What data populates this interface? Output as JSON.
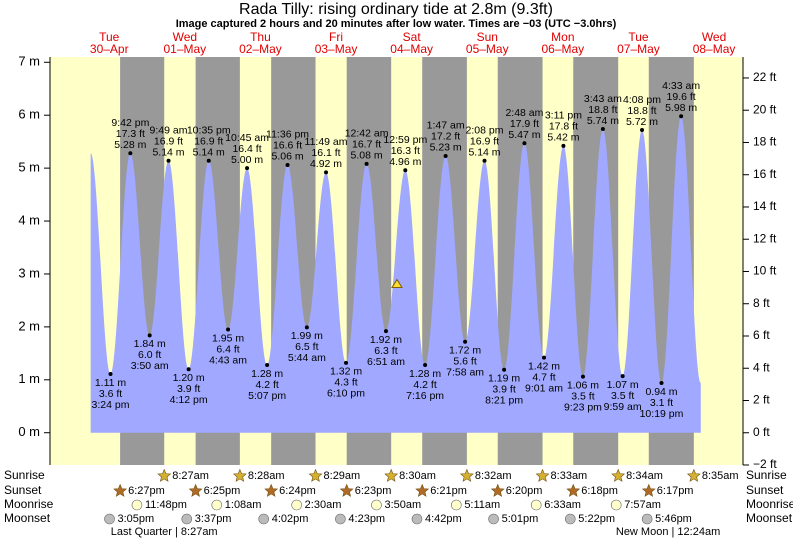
{
  "chart_data": {
    "type": "tide",
    "title": "Rada Tilly: rising  ordinary tide at 2.8m (9.3ft)",
    "subtitle": "Image captured 2 hours and 20 minutes after low water. Times are −03 (UTC −3.0hrs)",
    "ylim": [
      -0.61,
      7.1
    ],
    "yticks": [
      {
        "value": 0,
        "label": "0 m"
      },
      {
        "value": 1,
        "label": "1 m"
      },
      {
        "value": 2,
        "label": "2 m"
      },
      {
        "value": 3,
        "label": "3 m"
      },
      {
        "value": 4,
        "label": "4 m"
      },
      {
        "value": 5,
        "label": "5 m"
      },
      {
        "value": 6,
        "label": "6 m"
      },
      {
        "value": 7,
        "label": "7 m"
      }
    ],
    "y2lim": [
      -2,
      23.3
    ],
    "y2ticks": [
      {
        "value": -2,
        "label": "−2 ft"
      },
      {
        "value": 0,
        "label": "0 ft"
      },
      {
        "value": 2,
        "label": "2 ft"
      },
      {
        "value": 4,
        "label": "4 ft"
      },
      {
        "value": 6,
        "label": "6 ft"
      },
      {
        "value": 8,
        "label": "8 ft"
      },
      {
        "value": 10,
        "label": "10 ft"
      },
      {
        "value": 12,
        "label": "12 ft"
      },
      {
        "value": 14,
        "label": "14 ft"
      },
      {
        "value": 16,
        "label": "16 ft"
      },
      {
        "value": 18,
        "label": "18 ft"
      },
      {
        "value": 20,
        "label": "20 ft"
      },
      {
        "value": 22,
        "label": "22 ft"
      }
    ],
    "current": 2.8,
    "colors": {
      "day": "#ffffc8",
      "night": "#999999",
      "water": "#a0a8ff",
      "header": "#e00000",
      "sunrise": "#d4b030",
      "sunset": "#b06a28",
      "moonrise": "#ffffcc",
      "moonset": "#bbbbbb"
    },
    "row_labels": {
      "sunrise": "Sunrise",
      "sunset": "Sunset",
      "moonrise": "Moonrise",
      "moonset": "Moonset"
    },
    "days": [
      {
        "weekday": "Tue",
        "date": "30–Apr",
        "sunset": "6:27pm",
        "moonrise": "11:48pm",
        "moonset": "3:05pm",
        "tides": [
          {
            "time": "3:24 pm",
            "m": 1.11,
            "m_label": "1.11 m",
            "ft": 3.6,
            "ft_label": "3.6 ft"
          },
          {
            "time": "9:42 pm",
            "m": 5.28,
            "m_label": "5.28 m",
            "ft": 17.3,
            "ft_label": "17.3 ft"
          }
        ]
      },
      {
        "weekday": "Wed",
        "date": "01–May",
        "sunrise": "8:27am",
        "sunset": "6:25pm",
        "moonset": "3:37pm",
        "moon_phase": "Last Quarter | 8:27am",
        "tides": [
          {
            "time": "3:50 am",
            "m": 1.84,
            "m_label": "1.84 m",
            "ft": 6.0,
            "ft_label": "6.0 ft"
          },
          {
            "time": "9:49 am",
            "m": 5.14,
            "m_label": "5.14 m",
            "ft": 16.9,
            "ft_label": "16.9 ft"
          },
          {
            "time": "4:12 pm",
            "m": 1.2,
            "m_label": "1.20 m",
            "ft": 3.9,
            "ft_label": "3.9 ft"
          },
          {
            "time": "10:35 pm",
            "m": 5.14,
            "m_label": "5.14 m",
            "ft": 16.9,
            "ft_label": "16.9 ft"
          }
        ]
      },
      {
        "weekday": "Thu",
        "date": "02–May",
        "sunrise": "8:28am",
        "sunset": "6:24pm",
        "moonrise": "1:08am",
        "moonset": "4:02pm",
        "tides": [
          {
            "time": "4:43 am",
            "m": 1.95,
            "m_label": "1.95 m",
            "ft": 6.4,
            "ft_label": "6.4 ft"
          },
          {
            "time": "10:45 am",
            "m": 5.0,
            "m_label": "5.00 m",
            "ft": 16.4,
            "ft_label": "16.4 ft"
          },
          {
            "time": "5:07 pm",
            "m": 1.28,
            "m_label": "1.28 m",
            "ft": 4.2,
            "ft_label": "4.2 ft"
          },
          {
            "time": "11:36 pm",
            "m": 5.06,
            "m_label": "5.06 m",
            "ft": 16.6,
            "ft_label": "16.6 ft"
          }
        ]
      },
      {
        "weekday": "Fri",
        "date": "03–May",
        "sunrise": "8:29am",
        "sunset": "6:23pm",
        "moonrise": "2:30am",
        "moonset": "4:23pm",
        "tides": [
          {
            "time": "5:44 am",
            "m": 1.99,
            "m_label": "1.99 m",
            "ft": 6.5,
            "ft_label": "6.5 ft"
          },
          {
            "time": "11:49 am",
            "m": 4.92,
            "m_label": "4.92 m",
            "ft": 16.1,
            "ft_label": "16.1 ft"
          },
          {
            "time": "6:10 pm",
            "m": 1.32,
            "m_label": "1.32 m",
            "ft": 4.3,
            "ft_label": "4.3 ft"
          }
        ]
      },
      {
        "weekday": "Sat",
        "date": "04–May",
        "sunrise": "8:30am",
        "sunset": "6:21pm",
        "moonrise": "3:50am",
        "moonset": "4:42pm",
        "tides": [
          {
            "time": "12:42 am",
            "m": 5.08,
            "m_label": "5.08 m",
            "ft": 16.7,
            "ft_label": "16.7 ft"
          },
          {
            "time": "6:51 am",
            "m": 1.92,
            "m_label": "1.92 m",
            "ft": 6.3,
            "ft_label": "6.3 ft"
          },
          {
            "time": "12:59 pm",
            "m": 4.96,
            "m_label": "4.96 m",
            "ft": 16.3,
            "ft_label": "16.3 ft"
          },
          {
            "time": "7:16 pm",
            "m": 1.28,
            "m_label": "1.28 m",
            "ft": 4.2,
            "ft_label": "4.2 ft"
          }
        ]
      },
      {
        "weekday": "Sun",
        "date": "05–May",
        "sunrise": "8:32am",
        "sunset": "6:20pm",
        "moonrise": "5:11am",
        "moonset": "5:01pm",
        "tides": [
          {
            "time": "1:47 am",
            "m": 5.23,
            "m_label": "5.23 m",
            "ft": 17.2,
            "ft_label": "17.2 ft"
          },
          {
            "time": "7:58 am",
            "m": 1.72,
            "m_label": "1.72 m",
            "ft": 5.6,
            "ft_label": "5.6 ft"
          },
          {
            "time": "2:08 pm",
            "m": 5.14,
            "m_label": "5.14 m",
            "ft": 16.9,
            "ft_label": "16.9 ft"
          },
          {
            "time": "8:21 pm",
            "m": 1.19,
            "m_label": "1.19 m",
            "ft": 3.9,
            "ft_label": "3.9 ft"
          }
        ]
      },
      {
        "weekday": "Mon",
        "date": "06–May",
        "sunrise": "8:33am",
        "sunset": "6:18pm",
        "moonrise": "6:33am",
        "moonset": "5:22pm",
        "tides": [
          {
            "time": "2:48 am",
            "m": 5.47,
            "m_label": "5.47 m",
            "ft": 17.9,
            "ft_label": "17.9 ft"
          },
          {
            "time": "9:01 am",
            "m": 1.42,
            "m_label": "1.42 m",
            "ft": 4.7,
            "ft_label": "4.7 ft"
          },
          {
            "time": "3:11 pm",
            "m": 5.42,
            "m_label": "5.42 m",
            "ft": 17.8,
            "ft_label": "17.8 ft"
          },
          {
            "time": "9:23 pm",
            "m": 1.06,
            "m_label": "1.06 m",
            "ft": 3.5,
            "ft_label": "3.5 ft"
          }
        ]
      },
      {
        "weekday": "Tue",
        "date": "07–May",
        "sunrise": "8:34am",
        "sunset": "6:17pm",
        "moonrise": "7:57am",
        "moonset": "5:46pm",
        "tides": [
          {
            "time": "3:43 am",
            "m": 5.74,
            "m_label": "5.74 m",
            "ft": 18.8,
            "ft_label": "18.8 ft"
          },
          {
            "time": "9:59 am",
            "m": 1.07,
            "m_label": "1.07 m",
            "ft": 3.5,
            "ft_label": "3.5 ft"
          },
          {
            "time": "4:08 pm",
            "m": 5.72,
            "m_label": "5.72 m",
            "ft": 18.8,
            "ft_label": "18.8 ft"
          },
          {
            "time": "10:19 pm",
            "m": 0.94,
            "m_label": "0.94 m",
            "ft": 3.1,
            "ft_label": "3.1 ft"
          }
        ]
      },
      {
        "weekday": "Wed",
        "date": "08–May",
        "sunrise": "8:35am",
        "moon_phase": "New Moon | 12:24am",
        "tides": [
          {
            "time": "4:33 am",
            "m": 5.98,
            "m_label": "5.98 m",
            "ft": 19.6,
            "ft_label": "19.6 ft"
          }
        ]
      }
    ]
  }
}
